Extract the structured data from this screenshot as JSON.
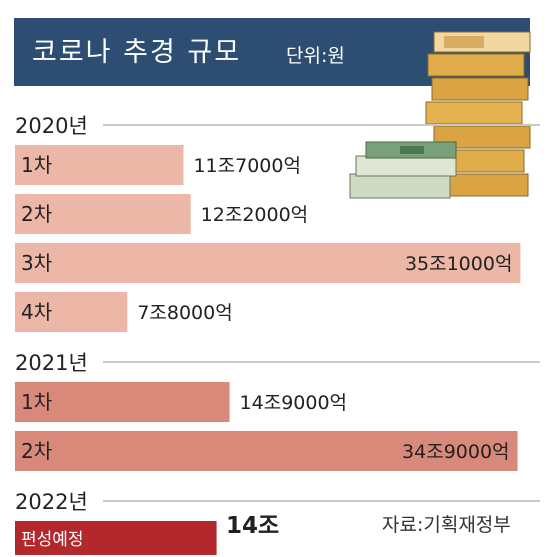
{
  "title": "코로나 추경 규모",
  "unit": "단위:원",
  "source": "자료:기획재정부",
  "colors": {
    "header": "#2d4d73",
    "y2020": "#ecb7a7",
    "y2021": "#d8897a",
    "y2022": "#b3282d"
  },
  "chart_data": {
    "type": "bar",
    "orientation": "horizontal",
    "groups": [
      {
        "year": "2020년",
        "bars": [
          {
            "label": "1차",
            "value": 11.7,
            "value_label": "11조7000억"
          },
          {
            "label": "2차",
            "value": 12.2,
            "value_label": "12조2000억"
          },
          {
            "label": "3차",
            "value": 35.1,
            "value_label": "35조1000억"
          },
          {
            "label": "4차",
            "value": 7.8,
            "value_label": "7조8000억"
          }
        ]
      },
      {
        "year": "2021년",
        "bars": [
          {
            "label": "1차",
            "value": 14.9,
            "value_label": "14조9000억"
          },
          {
            "label": "2차",
            "value": 34.9,
            "value_label": "34조9000억"
          }
        ]
      },
      {
        "year": "2022년",
        "bars": [
          {
            "label": "편성예정",
            "value": 14,
            "value_label": "14조"
          }
        ]
      }
    ]
  }
}
